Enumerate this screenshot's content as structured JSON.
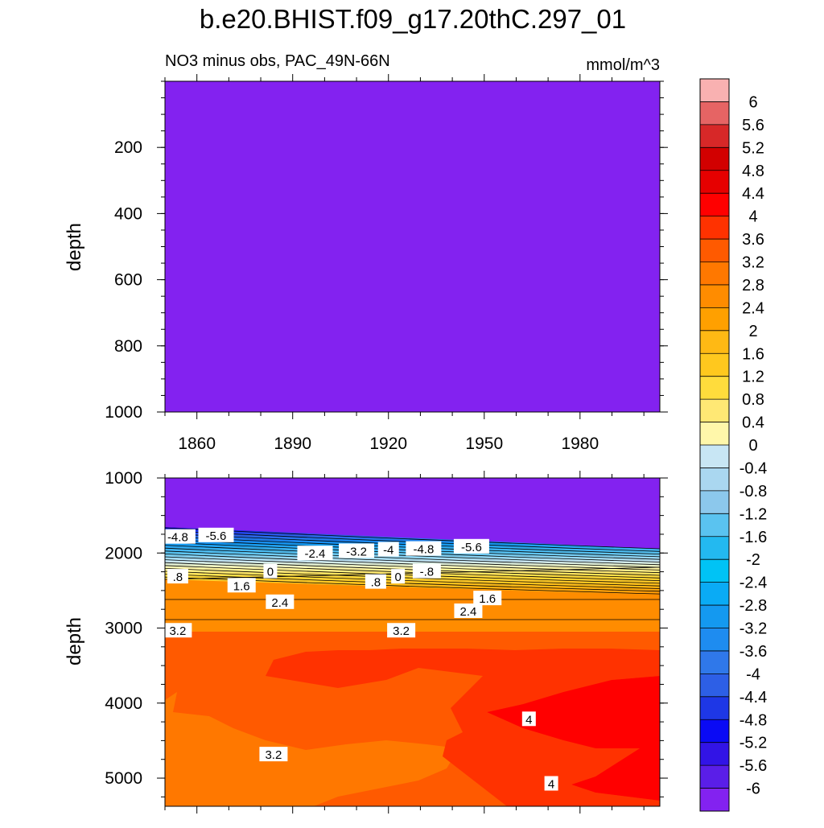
{
  "chart_data": {
    "type": "contour",
    "title": "b.e20.BHIST.f09_g17.20thC.297_01",
    "left_subtitle": "NO3 minus obs, PAC_49N-66N",
    "right_subtitle": "mmol/m^3",
    "ylabel": "depth",
    "x_range": [
      1850,
      2005
    ],
    "x_ticks": [
      1860,
      1890,
      1920,
      1950,
      1980
    ],
    "x_tick_labels": [
      "1860",
      "1890",
      "1920",
      "1950",
      "1980"
    ],
    "upper_panel": {
      "ylim": [
        0,
        1000
      ],
      "y_ticks": [
        200,
        400,
        600,
        800,
        1000
      ],
      "y_tick_labels": [
        "200",
        "400",
        "600",
        "800",
        "1000"
      ],
      "fill_value": -6
    },
    "lower_panel": {
      "ylim": [
        1000,
        5375
      ],
      "y_ticks": [
        1000,
        2000,
        3000,
        4000,
        5000
      ],
      "y_tick_labels": [
        "1000",
        "2000",
        "3000",
        "4000",
        "5000"
      ],
      "contour_labels": [
        {
          "text": "-4.8",
          "x": 1854,
          "depth": 1790
        },
        {
          "text": "-5.6",
          "x": 1866,
          "depth": 1770
        },
        {
          "text": "-2.4",
          "x": 1897,
          "depth": 2010
        },
        {
          "text": "-3.2",
          "x": 1910,
          "depth": 1980
        },
        {
          "text": "-4",
          "x": 1920,
          "depth": 1960
        },
        {
          "text": "-4.8",
          "x": 1931,
          "depth": 1950
        },
        {
          "text": "-5.6",
          "x": 1946,
          "depth": 1920
        },
        {
          "text": ".8",
          "x": 1854,
          "depth": 2320
        },
        {
          "text": "1.6",
          "x": 1874,
          "depth": 2440
        },
        {
          "text": "0",
          "x": 1883,
          "depth": 2250
        },
        {
          "text": "2.4",
          "x": 1886,
          "depth": 2660
        },
        {
          "text": ".8",
          "x": 1916,
          "depth": 2390
        },
        {
          "text": "0",
          "x": 1923,
          "depth": 2320
        },
        {
          "text": "-.8",
          "x": 1932,
          "depth": 2250
        },
        {
          "text": "1.6",
          "x": 1951,
          "depth": 2610
        },
        {
          "text": "2.4",
          "x": 1945,
          "depth": 2780
        },
        {
          "text": "3.2",
          "x": 1854,
          "depth": 3040
        },
        {
          "text": "3.2",
          "x": 1924,
          "depth": 3040
        },
        {
          "text": "4",
          "x": 1964,
          "depth": 4220
        },
        {
          "text": "3.2",
          "x": 1884,
          "depth": 4690
        },
        {
          "text": "4",
          "x": 1971,
          "depth": 5080
        }
      ]
    },
    "colorbar": {
      "levels": [
        -6,
        -5.6,
        -5.2,
        -4.8,
        -4.4,
        -4,
        -3.6,
        -3.2,
        -2.8,
        -2.4,
        -2,
        -1.6,
        -1.2,
        -0.8,
        -0.4,
        0,
        0.4,
        0.8,
        1.2,
        1.6,
        2,
        2.4,
        2.8,
        3.2,
        3.6,
        4,
        4.4,
        4.8,
        5.2,
        5.6,
        6
      ],
      "labels": [
        "-6",
        "-5.6",
        "-5.2",
        "-4.8",
        "-4.4",
        "-4",
        "-3.6",
        "-3.2",
        "-2.8",
        "-2.4",
        "-2",
        "-1.6",
        "-1.2",
        "-0.8",
        "-0.4",
        "0",
        "0.4",
        "0.8",
        "1.2",
        "1.6",
        "2",
        "2.4",
        "2.8",
        "3.2",
        "3.6",
        "4",
        "4.4",
        "4.8",
        "5.2",
        "5.6",
        "6"
      ],
      "colors": [
        "#8322f0",
        "#5a1ee8",
        "#3214e6",
        "#0a0af5",
        "#1e37e6",
        "#2d5fe6",
        "#2f78ea",
        "#1e8cf0",
        "#1499f0",
        "#0aabf5",
        "#00c3f5",
        "#23b9f0",
        "#5ac3f0",
        "#8cc8ec",
        "#aad7f0",
        "#c8e6f4",
        "#fff7aa",
        "#ffe874",
        "#ffdc3c",
        "#ffc81e",
        "#ffb914",
        "#ffa000",
        "#ff8c00",
        "#ff7800",
        "#ff5a00",
        "#ff3200",
        "#ff0000",
        "#e60000",
        "#d20000",
        "#d72828",
        "#e66464",
        "#f9b1b1"
      ]
    }
  }
}
